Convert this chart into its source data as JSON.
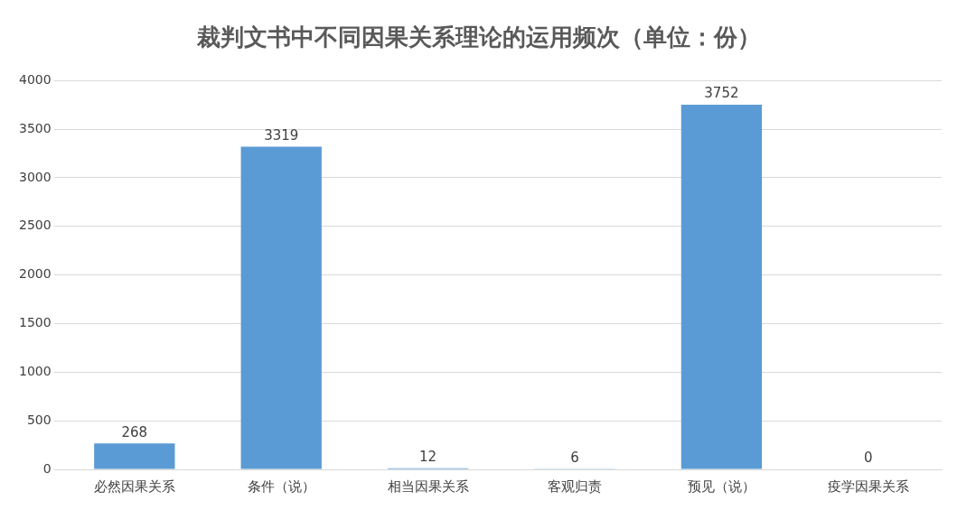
{
  "chart_data": {
    "type": "bar",
    "title": "裁判文书中不同因果关系理论的运用频次（单位：份）",
    "categories": [
      "必然因果关系",
      "条件（说）",
      "相当因果关系",
      "客观归责",
      "预见（说）",
      "疫学因果关系"
    ],
    "values": [
      268,
      3319,
      12,
      6,
      3752,
      0
    ],
    "color": "#5b9bd5",
    "ylim": [
      0,
      4000
    ],
    "yticks": [
      0,
      500,
      1000,
      1500,
      2000,
      2500,
      3000,
      3500,
      4000
    ],
    "grid": "y",
    "legend": false,
    "data_labels": true
  }
}
